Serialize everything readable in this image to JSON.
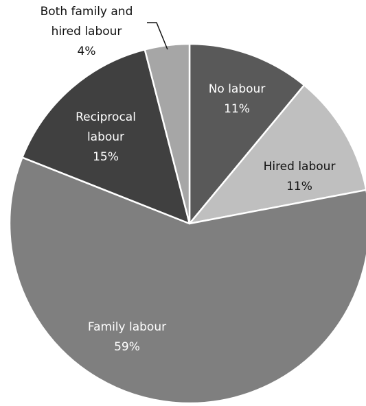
{
  "chart_data": {
    "type": "pie",
    "start_angle_deg": 0,
    "direction": "clockwise",
    "slices": [
      {
        "label": [
          "No labour"
        ],
        "value": 11,
        "percent_label": "11%",
        "color": "#595959",
        "label_color": "dark-bg"
      },
      {
        "label": [
          "Hired labour"
        ],
        "value": 11,
        "percent_label": "11%",
        "color": "#bfbfbf",
        "label_color": "light-bg"
      },
      {
        "label": [
          "Family labour"
        ],
        "value": 59,
        "percent_label": "59%",
        "color": "#7f7f7f",
        "label_color": "dark-bg"
      },
      {
        "label": [
          "Reciprocal",
          "labour"
        ],
        "value": 15,
        "percent_label": "15%",
        "color": "#404040",
        "label_color": "dark-bg"
      },
      {
        "label": [
          "Both family and",
          "hired labour"
        ],
        "value": 4,
        "percent_label": "4%",
        "color": "#a6a6a6",
        "label_color": "outside"
      }
    ]
  }
}
